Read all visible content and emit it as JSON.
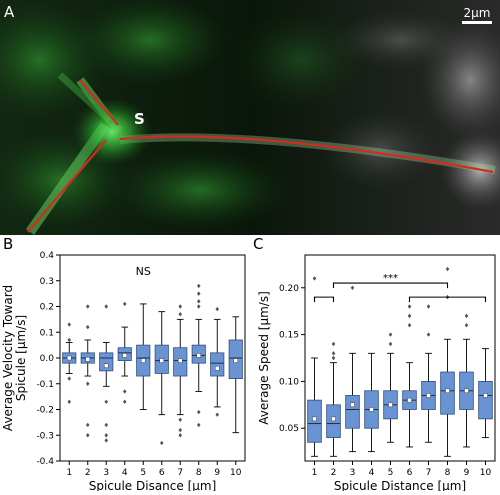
{
  "figure": {
    "panel_a": {
      "letter": "A",
      "scale_label": "2μm",
      "marker_label": "S",
      "colors": {
        "background": "#0b0f0b",
        "cell": "#3cc83c",
        "trace": "#d42a1f",
        "scale_bar": "#ffffff"
      }
    },
    "panel_b": {
      "letter": "B"
    },
    "panel_c": {
      "letter": "C"
    },
    "box_color": "#6a93d4"
  },
  "chart_data": [
    {
      "type": "box",
      "panel": "B",
      "xlabel": "Spicule Disance [μm]",
      "ylabel": "Average Velocity Toward Spicule [μm/s]",
      "ylim": [
        -0.4,
        0.4
      ],
      "yticks": [
        "0.4",
        "0.3",
        "0.2",
        "0.1",
        "0.0",
        "-0.1",
        "-0.2",
        "-0.3",
        "-0.4"
      ],
      "categories": [
        "1",
        "2",
        "3",
        "4",
        "5",
        "6",
        "7",
        "8",
        "9",
        "10"
      ],
      "annotation": "NS",
      "boxes": [
        {
          "q1": -0.02,
          "median": 0.0,
          "q3": 0.02,
          "mean": 0.0,
          "wl": -0.06,
          "wh": 0.06,
          "fliers": [
            0.13,
            0.07,
            -0.08,
            -0.17
          ]
        },
        {
          "q1": -0.02,
          "median": 0.0,
          "q3": 0.02,
          "mean": -0.005,
          "wl": -0.07,
          "wh": 0.07,
          "fliers": [
            0.2,
            0.12,
            -0.1,
            -0.26,
            -0.3
          ]
        },
        {
          "q1": -0.05,
          "median": 0.0,
          "q3": 0.02,
          "mean": -0.03,
          "wl": -0.11,
          "wh": 0.06,
          "fliers": [
            0.2,
            -0.17,
            -0.26,
            -0.3,
            -0.32
          ]
        },
        {
          "q1": -0.01,
          "median": 0.02,
          "q3": 0.04,
          "mean": 0.01,
          "wl": -0.07,
          "wh": 0.12,
          "fliers": [
            0.21,
            -0.13,
            -0.17
          ]
        },
        {
          "q1": -0.07,
          "median": 0.0,
          "q3": 0.05,
          "mean": -0.01,
          "wl": -0.2,
          "wh": 0.21,
          "fliers": []
        },
        {
          "q1": -0.06,
          "median": -0.01,
          "q3": 0.05,
          "mean": -0.01,
          "wl": -0.22,
          "wh": 0.18,
          "fliers": [
            -0.33
          ]
        },
        {
          "q1": -0.07,
          "median": -0.01,
          "q3": 0.04,
          "mean": -0.01,
          "wl": -0.22,
          "wh": 0.15,
          "fliers": [
            0.17,
            0.2,
            -0.24,
            -0.28,
            -0.3
          ]
        },
        {
          "q1": -0.02,
          "median": 0.01,
          "q3": 0.05,
          "mean": 0.01,
          "wl": -0.13,
          "wh": 0.15,
          "fliers": [
            0.2,
            0.22,
            0.25,
            0.28,
            -0.21,
            -0.26
          ]
        },
        {
          "q1": -0.07,
          "median": -0.02,
          "q3": 0.02,
          "mean": -0.04,
          "wl": -0.19,
          "wh": 0.15,
          "fliers": [
            0.19,
            -0.22
          ]
        },
        {
          "q1": -0.08,
          "median": 0.0,
          "q3": 0.07,
          "mean": -0.01,
          "wl": -0.29,
          "wh": 0.16,
          "fliers": []
        }
      ]
    },
    {
      "type": "box",
      "panel": "C",
      "xlabel": "Spicule Distance [μm]",
      "ylabel": "Average Speed [μm/s]",
      "ylim": [
        0.015,
        0.235
      ],
      "yticks": [
        "0.20",
        "0.15",
        "0.10",
        "0.05"
      ],
      "categories": [
        "1",
        "2",
        "3",
        "4",
        "5",
        "6",
        "7",
        "8",
        "9",
        "10"
      ],
      "annotation": "***",
      "boxes": [
        {
          "q1": 0.035,
          "median": 0.055,
          "q3": 0.08,
          "mean": 0.06,
          "wl": 0.02,
          "wh": 0.125,
          "fliers": [
            0.21
          ]
        },
        {
          "q1": 0.04,
          "median": 0.055,
          "q3": 0.075,
          "mean": 0.06,
          "wl": 0.02,
          "wh": 0.12,
          "fliers": [
            0.14,
            0.13,
            0.125
          ]
        },
        {
          "q1": 0.05,
          "median": 0.07,
          "q3": 0.085,
          "mean": 0.075,
          "wl": 0.025,
          "wh": 0.13,
          "fliers": [
            0.2
          ]
        },
        {
          "q1": 0.05,
          "median": 0.07,
          "q3": 0.09,
          "mean": 0.07,
          "wl": 0.025,
          "wh": 0.13,
          "fliers": []
        },
        {
          "q1": 0.06,
          "median": 0.075,
          "q3": 0.09,
          "mean": 0.075,
          "wl": 0.035,
          "wh": 0.13,
          "fliers": [
            0.15,
            0.14
          ]
        },
        {
          "q1": 0.07,
          "median": 0.08,
          "q3": 0.09,
          "mean": 0.08,
          "wl": 0.03,
          "wh": 0.12,
          "fliers": [
            0.16,
            0.17,
            0.18
          ]
        },
        {
          "q1": 0.07,
          "median": 0.085,
          "q3": 0.1,
          "mean": 0.085,
          "wl": 0.035,
          "wh": 0.13,
          "fliers": [
            0.15,
            0.18
          ]
        },
        {
          "q1": 0.065,
          "median": 0.09,
          "q3": 0.11,
          "mean": 0.09,
          "wl": 0.02,
          "wh": 0.145,
          "fliers": [
            0.22,
            0.19
          ]
        },
        {
          "q1": 0.07,
          "median": 0.09,
          "q3": 0.11,
          "mean": 0.09,
          "wl": 0.03,
          "wh": 0.145,
          "fliers": [
            0.16,
            0.17
          ]
        },
        {
          "q1": 0.06,
          "median": 0.085,
          "q3": 0.1,
          "mean": 0.085,
          "wl": 0.04,
          "wh": 0.135,
          "fliers": []
        }
      ],
      "brackets": [
        {
          "from": "1",
          "to": "2",
          "level": 0.19
        },
        {
          "from": "2",
          "to": "8",
          "level": 0.205
        },
        {
          "from": "6",
          "to": "10",
          "level": 0.19
        }
      ]
    }
  ]
}
